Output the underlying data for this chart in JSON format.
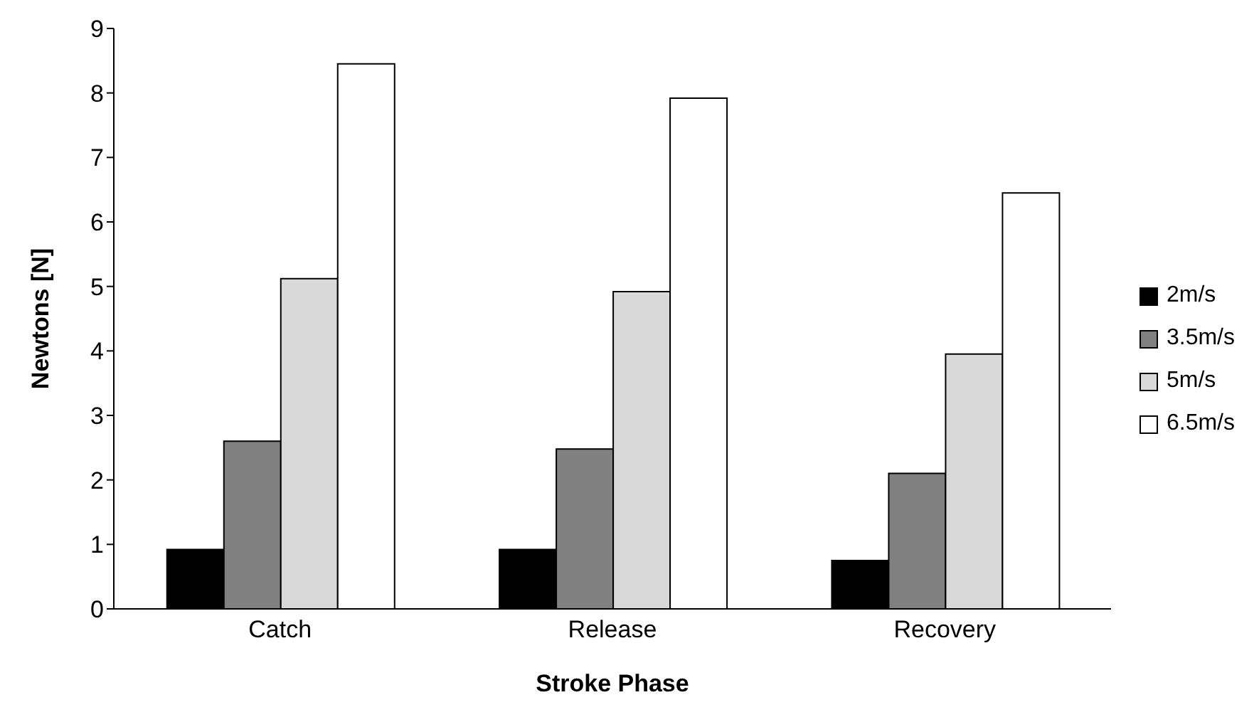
{
  "chart_data": {
    "type": "bar",
    "xlabel": "Stroke Phase",
    "ylabel": "Newtons [N]",
    "categories": [
      "Catch",
      "Release",
      "Recovery"
    ],
    "series": [
      {
        "name": "2m/s",
        "color": "#000000",
        "values": [
          0.92,
          0.92,
          0.75
        ]
      },
      {
        "name": "3.5m/s",
        "color": "#808080",
        "values": [
          2.6,
          2.48,
          2.1
        ]
      },
      {
        "name": "5m/s",
        "color": "#d9d9d9",
        "values": [
          5.12,
          4.92,
          3.95
        ]
      },
      {
        "name": "6.5m/s",
        "color": "#ffffff",
        "values": [
          8.45,
          7.92,
          6.45
        ]
      }
    ],
    "ylim": [
      0,
      9
    ],
    "yticks": [
      0,
      1,
      2,
      3,
      4,
      5,
      6,
      7,
      8,
      9
    ],
    "grid": false,
    "legend": "right"
  }
}
